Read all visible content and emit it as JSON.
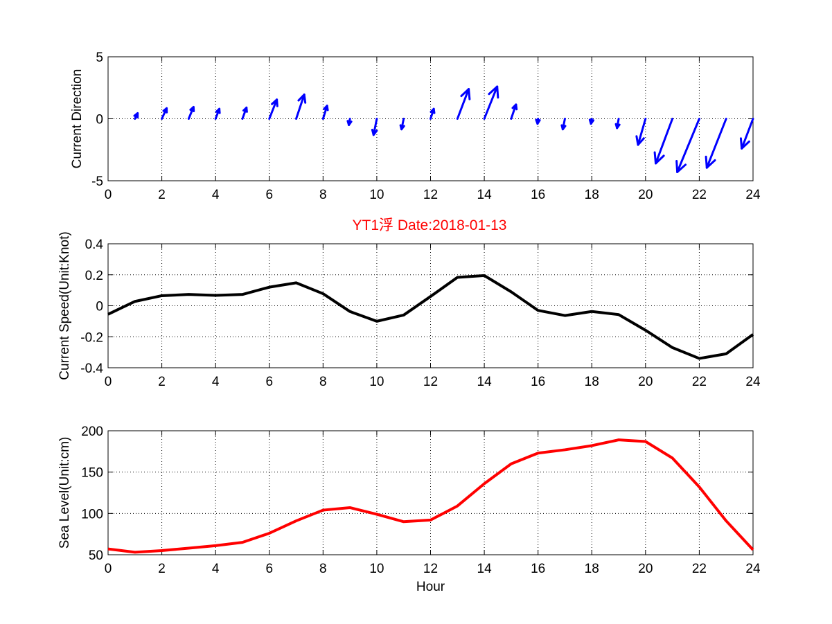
{
  "colors": {
    "quiver": "#0000ff",
    "speed": "#000000",
    "sea": "#ff0000",
    "title": "#ff0000"
  },
  "title": "YT1浮    Date:2018-01-13",
  "chart_data": [
    {
      "id": "direction",
      "type": "quiver",
      "ylabel": "Current Direction",
      "xlabel": "",
      "xlim": [
        0,
        24
      ],
      "ylim": [
        -5,
        5
      ],
      "xticks": [
        "0",
        "2",
        "4",
        "6",
        "8",
        "10",
        "12",
        "14",
        "16",
        "18",
        "20",
        "22",
        "24"
      ],
      "yticks": [
        "-5",
        "0",
        "5"
      ],
      "grid": true,
      "x": [
        1,
        2,
        3,
        4,
        5,
        6,
        7,
        8,
        9,
        10,
        11,
        12,
        13,
        14,
        15,
        16,
        17,
        18,
        19,
        20,
        21,
        22,
        23,
        24
      ],
      "u": [
        0.1,
        0.18,
        0.18,
        0.14,
        0.15,
        0.28,
        0.3,
        0.15,
        -0.04,
        -0.12,
        -0.08,
        0.12,
        0.42,
        0.48,
        0.18,
        -0.02,
        -0.08,
        -0.03,
        -0.06,
        -0.28,
        -0.62,
        -0.82,
        -0.72,
        -0.42
      ],
      "v": [
        0.45,
        0.85,
        0.95,
        0.8,
        0.9,
        1.55,
        1.95,
        1.05,
        -0.5,
        -1.3,
        -0.85,
        0.8,
        2.4,
        2.6,
        1.15,
        -0.4,
        -0.85,
        -0.4,
        -0.75,
        -2.1,
        -3.6,
        -4.3,
        -3.95,
        -2.4
      ]
    },
    {
      "id": "speed",
      "type": "line",
      "ylabel": "Current Speed(Unit:Knot)",
      "xlabel": "",
      "xlim": [
        0,
        24
      ],
      "ylim": [
        -0.4,
        0.4
      ],
      "xticks": [
        "0",
        "2",
        "4",
        "6",
        "8",
        "10",
        "12",
        "14",
        "16",
        "18",
        "20",
        "22",
        "24"
      ],
      "yticks": [
        "-0.4",
        "-0.2",
        "0",
        "0.2",
        "0.4"
      ],
      "grid": true,
      "x": [
        0,
        1,
        2,
        3,
        4,
        5,
        6,
        7,
        8,
        9,
        10,
        11,
        12,
        13,
        14,
        15,
        16,
        17,
        18,
        19,
        20,
        21,
        22,
        23,
        24
      ],
      "y": [
        -0.055,
        0.028,
        0.065,
        0.073,
        0.067,
        0.073,
        0.12,
        0.148,
        0.078,
        -0.037,
        -0.1,
        -0.06,
        0.06,
        0.183,
        0.195,
        0.09,
        -0.03,
        -0.063,
        -0.037,
        -0.057,
        -0.158,
        -0.27,
        -0.34,
        -0.31,
        -0.185
      ]
    },
    {
      "id": "sealevel",
      "type": "line",
      "ylabel": "Sea Level(Unit:cm)",
      "xlabel": "Hour",
      "xlim": [
        0,
        24
      ],
      "ylim": [
        50,
        200
      ],
      "xticks": [
        "0",
        "2",
        "4",
        "6",
        "8",
        "10",
        "12",
        "14",
        "16",
        "18",
        "20",
        "22",
        "24"
      ],
      "yticks": [
        "50",
        "100",
        "150",
        "200"
      ],
      "grid": true,
      "x": [
        0,
        1,
        2,
        3,
        4,
        5,
        6,
        7,
        8,
        9,
        10,
        11,
        12,
        13,
        14,
        15,
        16,
        17,
        18,
        19,
        20,
        21,
        22,
        23,
        24
      ],
      "y": [
        57,
        53,
        55,
        58,
        61,
        65,
        76,
        91,
        104,
        107,
        99,
        90,
        92,
        109,
        136,
        160,
        173,
        177,
        182,
        189,
        187,
        167,
        132,
        91,
        56
      ]
    }
  ]
}
